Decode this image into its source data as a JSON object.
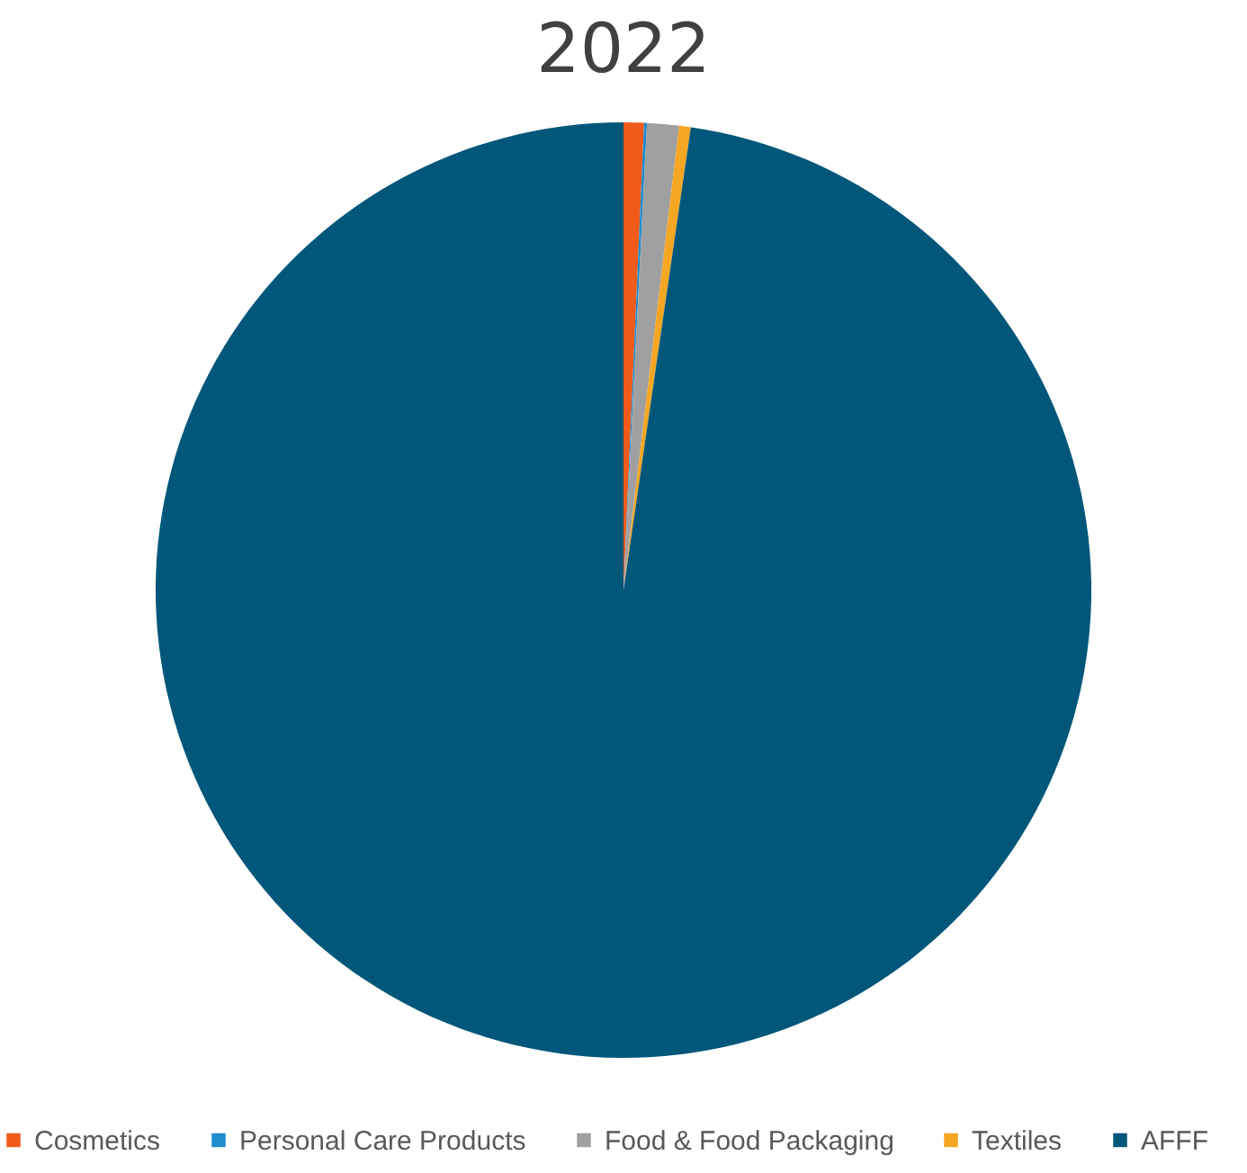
{
  "chart_data": {
    "type": "pie",
    "title": "2022",
    "categories": [
      "Cosmetics",
      "Personal Care Products",
      "Food & Food Packaging",
      "Textiles",
      "AFFF"
    ],
    "values": [
      0.7,
      0.1,
      1.1,
      0.4,
      97.7
    ],
    "colors": [
      "#f05a1a",
      "#1f8ccc",
      "#a0a0a0",
      "#f5a623",
      "#00577a"
    ],
    "legend": "bottom"
  }
}
